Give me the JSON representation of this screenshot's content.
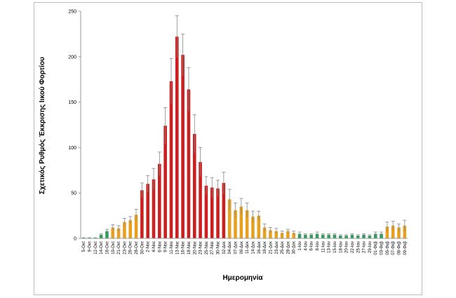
{
  "chart_data": {
    "type": "bar",
    "xlabel": "Ημερομηνία",
    "ylabel": "Σχετικός Ρυθμός Έκκρισης Ιικού Φορτίου",
    "ylim": [
      0,
      250
    ],
    "yticks": [
      0,
      50,
      100,
      150,
      200,
      250
    ],
    "grid": false,
    "categories": [
      "5-Οκτ",
      "9-Οκτ",
      "12-Οκτ",
      "14-Οκτ",
      "16-Οκτ",
      "19-Οκτ",
      "21-Οκτ",
      "23-Οκτ",
      "26-Οκτ",
      "28-Οκτ",
      "30-Οκτ",
      "2-Νοε",
      "4-Νοε",
      "6-Νοε",
      "9-Νοε",
      "11-Νοε",
      "13-Νοε",
      "16-Νοε",
      "18-Νοε",
      "20-Νοε",
      "23-Νοε",
      "25-Νοε",
      "27-Νοε",
      "30-Νοε",
      "02-Δεκ",
      "04-Δεκ",
      "07-Δεκ",
      "09-Δεκ",
      "11-Δεκ",
      "14-Δεκ",
      "16-Δεκ",
      "18-Δεκ",
      "21-Δεκ",
      "23-Δεκ",
      "25-Δεκ",
      "28-Δεκ",
      "30-Δεκ",
      "1-Ιαν",
      "4-Ιαν",
      "6-Ιαν",
      "8-Ιαν",
      "11-Ιαν",
      "13-Ιαν",
      "15-Ιαν",
      "18-Ιαν",
      "20-Ιαν",
      "22-Ιαν",
      "25-Ιαν",
      "27-Ιαν",
      "29-Ιαν",
      "01-Φεβ",
      "03-Φεβ",
      "05-Φεβ",
      "07-Φεβ",
      "08-Φεβ",
      "09-Φεβ"
    ],
    "values": [
      1,
      1,
      1,
      4,
      8,
      12,
      11,
      18,
      20,
      26,
      53,
      60,
      65,
      82,
      124,
      173,
      222,
      202,
      164,
      115,
      84,
      58,
      56,
      55,
      61,
      43,
      31,
      35,
      31,
      24,
      25,
      12,
      9,
      8,
      6,
      8,
      6,
      5,
      4,
      4,
      5,
      4,
      4,
      4,
      3,
      3,
      4,
      3,
      4,
      3,
      5,
      5,
      13,
      14,
      12,
      14
    ],
    "errors": [
      0,
      0,
      0,
      1,
      2,
      3,
      3,
      4,
      4,
      6,
      8,
      9,
      12,
      13,
      20,
      25,
      23,
      23,
      24,
      21,
      16,
      10,
      11,
      9,
      12,
      11,
      8,
      9,
      8,
      6,
      5,
      4,
      3,
      3,
      2,
      2,
      2,
      2,
      1,
      1,
      2,
      1,
      1,
      1,
      1,
      1,
      1,
      1,
      1,
      1,
      2,
      2,
      5,
      5,
      4,
      6
    ],
    "colors": [
      "#2e9e5b",
      "#2e9e5b",
      "#2e9e5b",
      "#2e9e5b",
      "#2e9e5b",
      "#e8a020",
      "#e8a020",
      "#e8a020",
      "#e8a020",
      "#e8a020",
      "#cc1f1f",
      "#cc1f1f",
      "#cc1f1f",
      "#cc1f1f",
      "#cc1f1f",
      "#cc1f1f",
      "#cc1f1f",
      "#cc1f1f",
      "#cc1f1f",
      "#cc1f1f",
      "#cc1f1f",
      "#cc1f1f",
      "#cc1f1f",
      "#cc1f1f",
      "#cc1f1f",
      "#e8a020",
      "#e8a020",
      "#e8a020",
      "#e8a020",
      "#e8a020",
      "#e8a020",
      "#e8a020",
      "#e8a020",
      "#e8a020",
      "#e8a020",
      "#e8a020",
      "#e8a020",
      "#2e9e5b",
      "#2e9e5b",
      "#2e9e5b",
      "#2e9e5b",
      "#2e9e5b",
      "#2e9e5b",
      "#2e9e5b",
      "#2e9e5b",
      "#2e9e5b",
      "#2e9e5b",
      "#2e9e5b",
      "#2e9e5b",
      "#2e9e5b",
      "#2e9e5b",
      "#2e9e5b",
      "#e8a020",
      "#e8a020",
      "#e8a020",
      "#e8a020"
    ]
  }
}
